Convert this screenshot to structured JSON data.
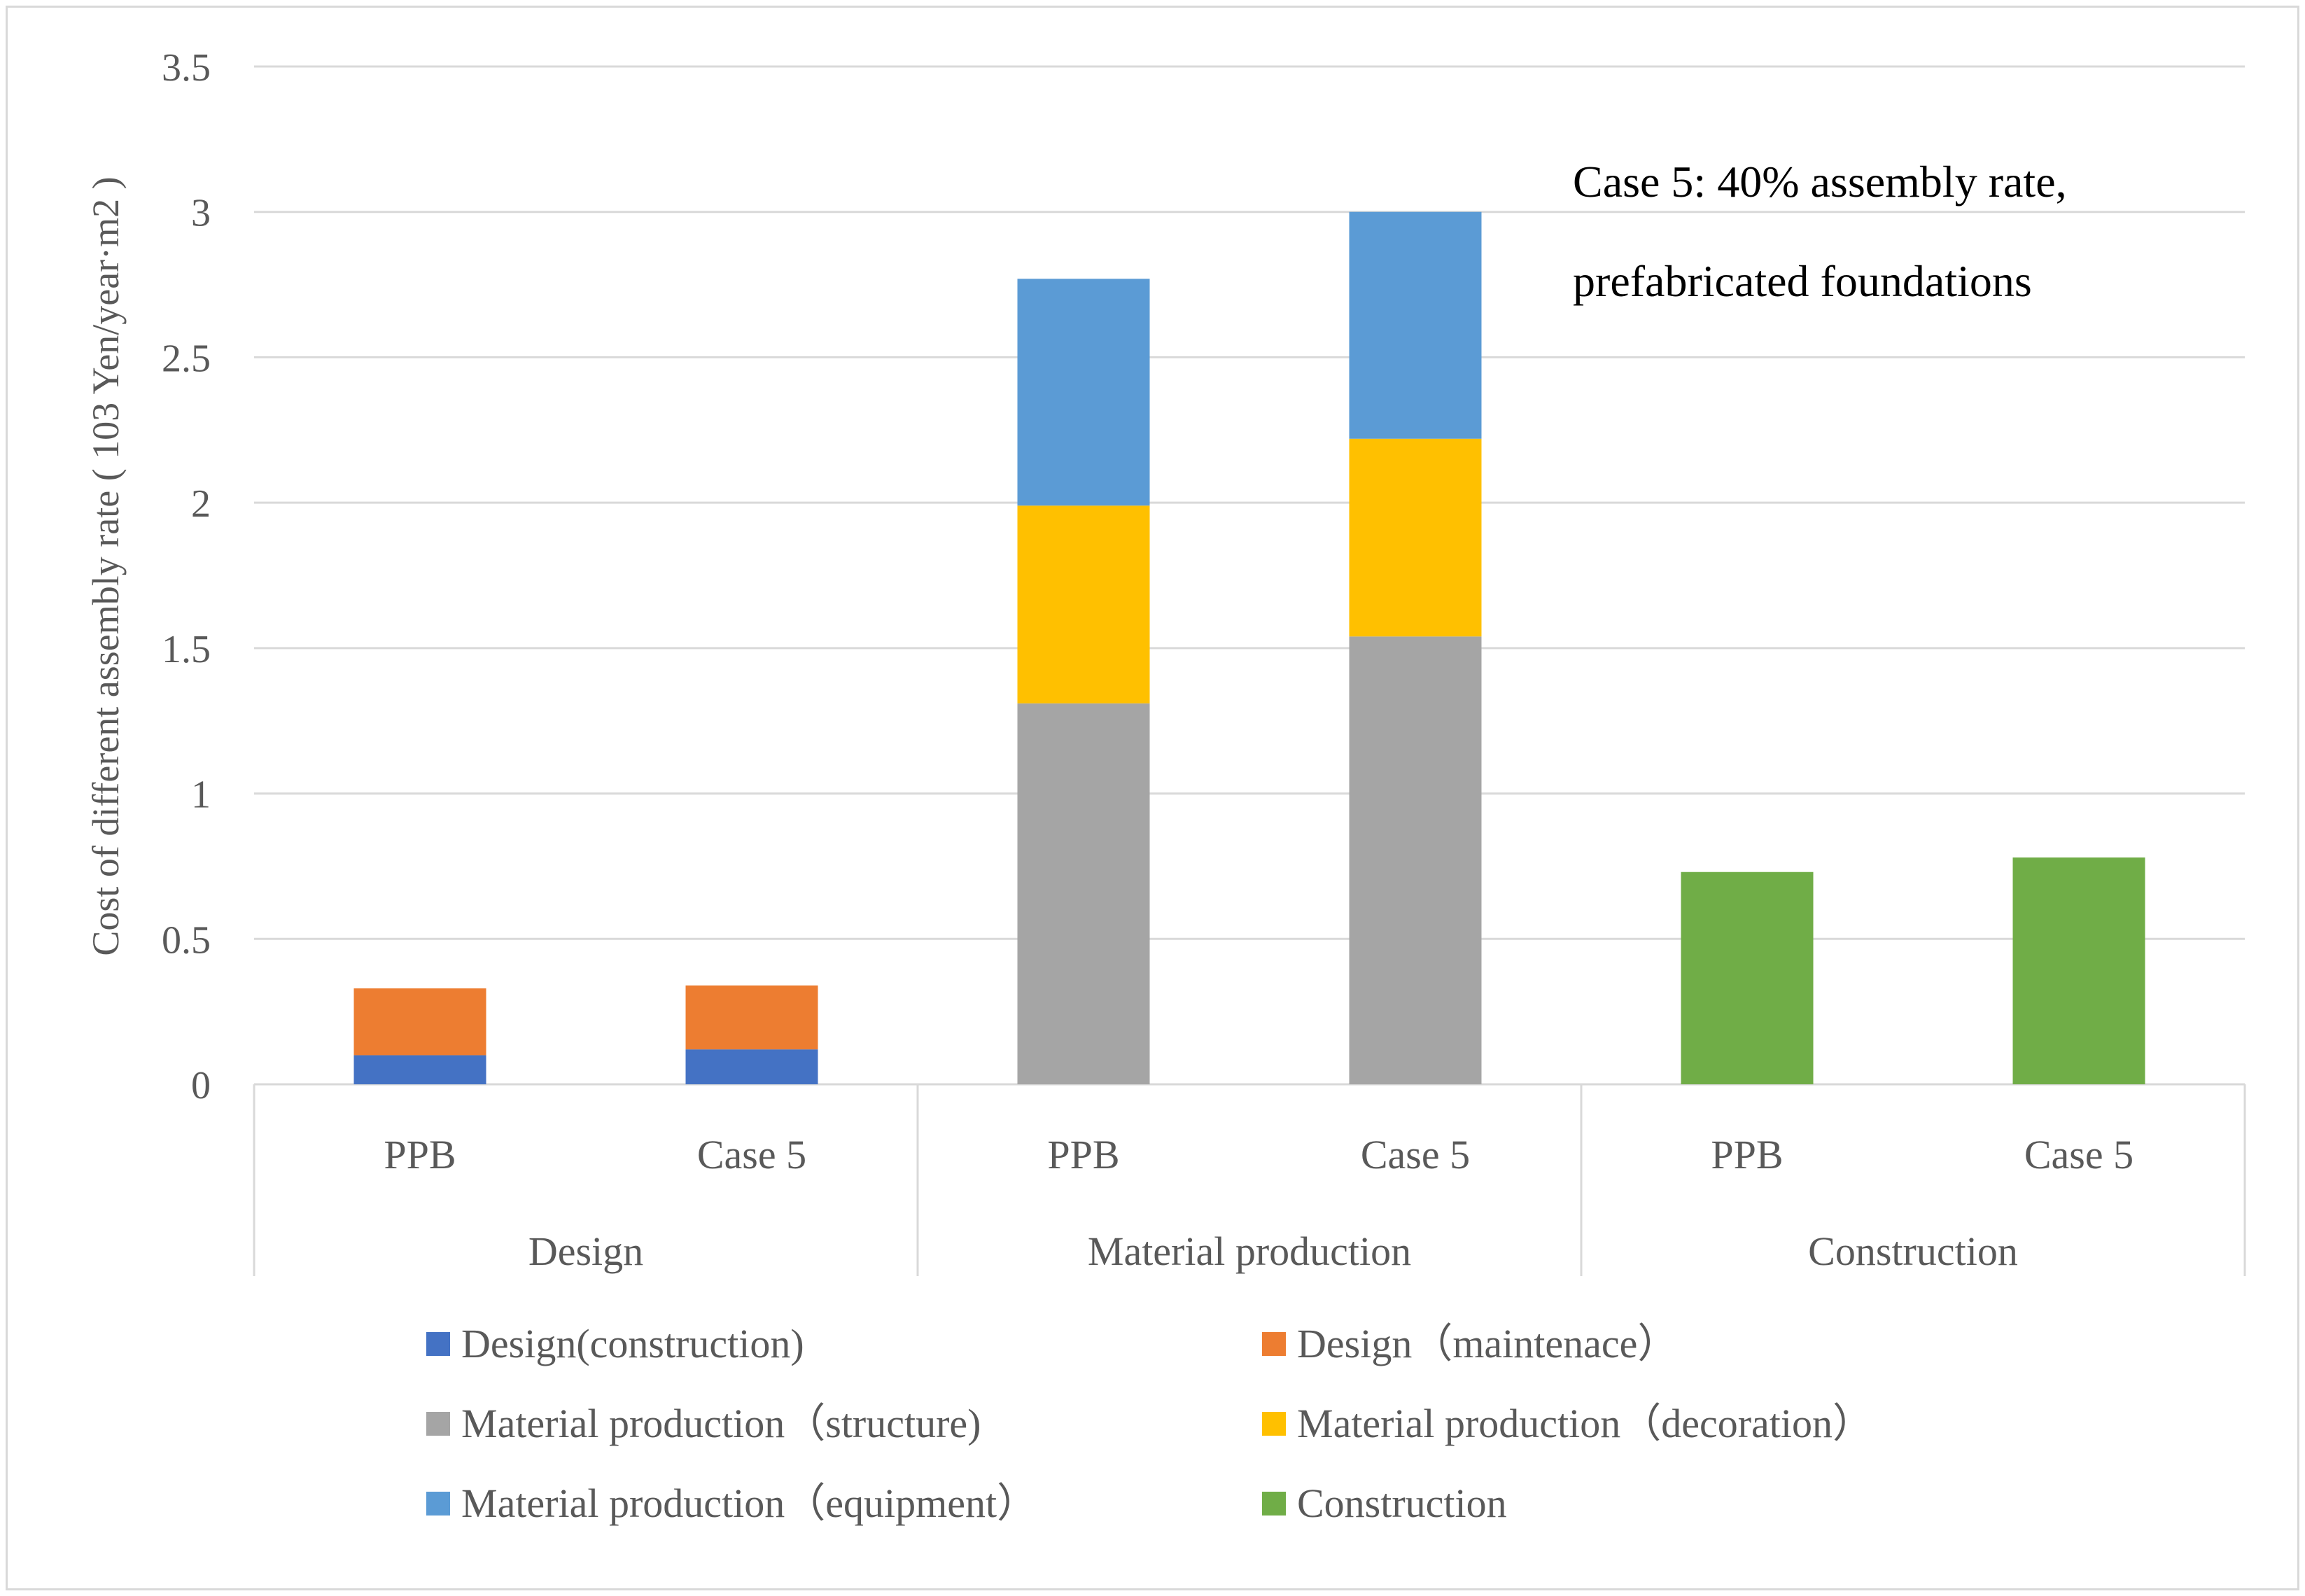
{
  "chart_data": {
    "type": "bar",
    "stacked": true,
    "title": "",
    "ylabel": "Cost of different assembly rate ( 103  Yen/year·m2 )",
    "xlabel": "",
    "ylim": [
      0,
      3.5
    ],
    "yticks": [
      "0",
      "0.5",
      "1",
      "1.5",
      "2",
      "2.5",
      "3",
      "3.5"
    ],
    "ytick_values": [
      0,
      0.5,
      1,
      1.5,
      2,
      2.5,
      3,
      3.5
    ],
    "grid": true,
    "groups": [
      "Design",
      "Material production",
      "Construction"
    ],
    "categories": [
      "PPB",
      "Case 5",
      "PPB",
      "Case 5",
      "PPB",
      "Case 5"
    ],
    "category_group": [
      0,
      0,
      1,
      1,
      2,
      2
    ],
    "series": [
      {
        "name": "Design(construction)",
        "color": "#4472c4",
        "values": [
          0.1,
          0.12,
          0,
          0,
          0,
          0
        ]
      },
      {
        "name": "Design（maintenace）",
        "color": "#ed7d31",
        "values": [
          0.23,
          0.22,
          0,
          0,
          0,
          0
        ]
      },
      {
        "name": "Material production（structure)",
        "color": "#a5a5a5",
        "values": [
          0,
          0,
          1.31,
          1.54,
          0,
          0
        ]
      },
      {
        "name": "Material production（decoration）",
        "color": "#ffc000",
        "values": [
          0,
          0,
          0.68,
          0.68,
          0,
          0
        ]
      },
      {
        "name": "Material production（equipment）",
        "color": "#5b9bd5",
        "values": [
          0,
          0,
          0.78,
          0.78,
          0,
          0
        ]
      },
      {
        "name": "Construction",
        "color": "#70ad47",
        "values": [
          0,
          0,
          0,
          0,
          0.73,
          0.78
        ]
      }
    ],
    "annotation": [
      "Case 5: 40% assembly rate,",
      "prefabricated foundations"
    ],
    "legend_position": "bottom"
  },
  "colors": {
    "gridline": "#d9d9d9",
    "axis_text": "#595959",
    "annotation_text": "#000000"
  }
}
